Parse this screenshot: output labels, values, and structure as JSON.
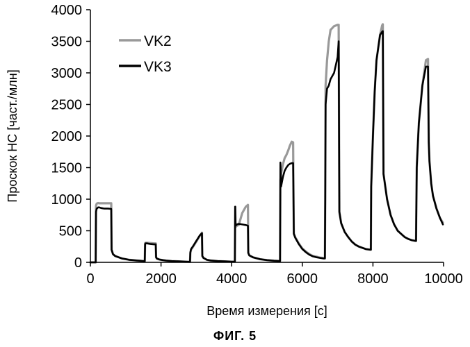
{
  "chart_data": {
    "type": "line",
    "title": "",
    "xlabel": "Время измерения [с]",
    "ylabel": "Проскок НС [част./млн]",
    "xlim": [
      0,
      10000
    ],
    "ylim": [
      0,
      4000
    ],
    "xticks": [
      0,
      2000,
      4000,
      6000,
      8000,
      10000
    ],
    "yticks": [
      0,
      500,
      1000,
      1500,
      2000,
      2500,
      3000,
      3500,
      4000
    ],
    "legend_position": "top-left",
    "series": [
      {
        "name": "VK2",
        "color": "#999999",
        "x": [
          0,
          150,
          160,
          180,
          220,
          250,
          300,
          350,
          400,
          500,
          590,
          600,
          640,
          700,
          800,
          900,
          1000,
          1100,
          1200,
          1300,
          1400,
          1500,
          1540,
          1550,
          1560,
          1600,
          1700,
          1800,
          1850,
          1860,
          1880,
          1950,
          2050,
          2150,
          2300,
          2500,
          2700,
          2820,
          2830,
          2850,
          2900,
          3000,
          3100,
          3160,
          3170,
          3200,
          3300,
          3400,
          3600,
          3800,
          4000,
          4090,
          4100,
          4110,
          4150,
          4200,
          4300,
          4400,
          4460,
          4470,
          4500,
          4600,
          4800,
          5000,
          5200,
          5370,
          5380,
          5400,
          5450,
          5500,
          5550,
          5600,
          5650,
          5700,
          5740,
          5760,
          5800,
          5900,
          6000,
          6100,
          6200,
          6300,
          6400,
          6500,
          6600,
          6640,
          6650,
          6660,
          6700,
          6750,
          6800,
          6900,
          7000,
          7030,
          7050,
          7100,
          7200,
          7300,
          7400,
          7500,
          7600,
          7700,
          7800,
          7930,
          7940,
          7950,
          8000,
          8050,
          8100,
          8200,
          8260,
          8280,
          8300,
          8400,
          8500,
          8600,
          8700,
          8800,
          8900,
          9000,
          9100,
          9200,
          9220,
          9240,
          9300,
          9400,
          9500,
          9560,
          9580,
          9600,
          9650,
          9700,
          9800,
          9900,
          9980
        ],
        "y": [
          0,
          0,
          900,
          930,
          940,
          935,
          935,
          935,
          935,
          935,
          935,
          200,
          130,
          100,
          80,
          60,
          50,
          40,
          35,
          30,
          25,
          20,
          20,
          300,
          310,
          310,
          305,
          300,
          300,
          80,
          60,
          45,
          35,
          28,
          20,
          15,
          10,
          8,
          150,
          200,
          240,
          330,
          420,
          470,
          100,
          70,
          40,
          30,
          20,
          15,
          10,
          10,
          880,
          560,
          580,
          590,
          780,
          880,
          910,
          150,
          110,
          80,
          50,
          35,
          25,
          20,
          1300,
          1400,
          1550,
          1650,
          1700,
          1770,
          1850,
          1910,
          1900,
          460,
          400,
          300,
          220,
          170,
          130,
          100,
          90,
          75,
          70,
          70,
          1000,
          2800,
          3200,
          3500,
          3680,
          3740,
          3760,
          3760,
          800,
          620,
          480,
          400,
          330,
          280,
          250,
          230,
          210,
          200,
          200,
          1200,
          2000,
          2700,
          3200,
          3600,
          3750,
          3770,
          1400,
          1000,
          750,
          600,
          500,
          450,
          400,
          370,
          350,
          340,
          340,
          1500,
          2200,
          2800,
          3200,
          3220,
          1900,
          1600,
          1250,
          1050,
          850,
          700,
          630
        ]
      },
      {
        "name": "VK3",
        "color": "#000000",
        "x": [
          0,
          150,
          160,
          180,
          220,
          250,
          300,
          350,
          400,
          500,
          590,
          600,
          640,
          700,
          800,
          900,
          1000,
          1100,
          1200,
          1300,
          1400,
          1500,
          1540,
          1550,
          1560,
          1600,
          1700,
          1800,
          1850,
          1860,
          1880,
          1950,
          2050,
          2150,
          2300,
          2500,
          2700,
          2820,
          2830,
          2850,
          2900,
          3000,
          3100,
          3160,
          3170,
          3200,
          3300,
          3400,
          3600,
          3800,
          4000,
          4090,
          4100,
          4110,
          4150,
          4200,
          4300,
          4400,
          4460,
          4470,
          4500,
          4600,
          4800,
          5000,
          5200,
          5370,
          5380,
          5400,
          5450,
          5500,
          5550,
          5600,
          5650,
          5700,
          5740,
          5760,
          5800,
          5900,
          6000,
          6100,
          6200,
          6300,
          6400,
          6500,
          6600,
          6640,
          6650,
          6660,
          6700,
          6750,
          6800,
          6900,
          7000,
          7030,
          7050,
          7100,
          7200,
          7300,
          7400,
          7500,
          7600,
          7700,
          7800,
          7930,
          7940,
          7950,
          8000,
          8050,
          8100,
          8200,
          8260,
          8280,
          8300,
          8400,
          8500,
          8600,
          8700,
          8800,
          8900,
          9000,
          9100,
          9200,
          9220,
          9240,
          9300,
          9400,
          9500,
          9560,
          9580,
          9600,
          9650,
          9700,
          9800,
          9900,
          9980
        ],
        "y": [
          0,
          0,
          800,
          850,
          870,
          870,
          860,
          855,
          850,
          850,
          845,
          200,
          130,
          100,
          80,
          60,
          50,
          40,
          35,
          30,
          25,
          20,
          20,
          280,
          300,
          300,
          290,
          285,
          285,
          80,
          60,
          45,
          35,
          28,
          20,
          15,
          10,
          8,
          160,
          210,
          250,
          340,
          430,
          460,
          100,
          70,
          40,
          30,
          20,
          15,
          10,
          10,
          880,
          580,
          600,
          610,
          600,
          590,
          580,
          150,
          110,
          80,
          50,
          35,
          25,
          20,
          1580,
          1200,
          1350,
          1450,
          1500,
          1540,
          1560,
          1570,
          1570,
          450,
          390,
          290,
          210,
          160,
          120,
          95,
          80,
          70,
          60,
          60,
          1000,
          2500,
          2750,
          2800,
          2900,
          3000,
          3250,
          3500,
          800,
          620,
          480,
          400,
          330,
          280,
          250,
          230,
          210,
          200,
          200,
          1200,
          2000,
          2700,
          3200,
          3600,
          3650,
          3660,
          1400,
          1000,
          750,
          600,
          500,
          450,
          400,
          370,
          350,
          340,
          340,
          1500,
          2200,
          2800,
          3100,
          3100,
          1900,
          1600,
          1250,
          1050,
          850,
          700,
          600
        ]
      }
    ]
  },
  "caption": "ФИГ. 5"
}
